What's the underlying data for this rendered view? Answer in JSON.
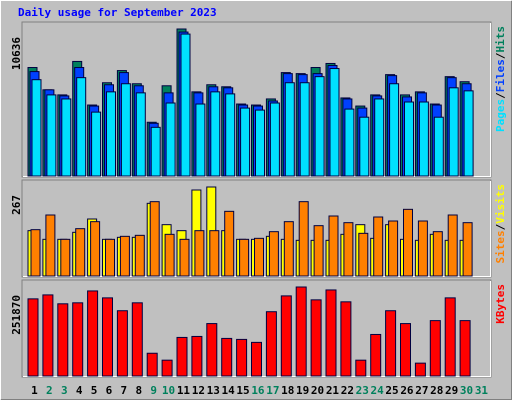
{
  "title": "Daily usage for September 2023",
  "legend_separator": "/",
  "chart_data": [
    {
      "type": "bar",
      "ylim": [
        0,
        10636
      ],
      "yticks": [
        10636
      ],
      "series": [
        {
          "name": "Hits",
          "color": "#00805c",
          "values": [
            7849,
            6235,
            5868,
            8289,
            5135,
            6748,
            7628,
            6675,
            3888,
            6528,
            10636,
            6088,
            6602,
            6455,
            5208,
            5135,
            5575,
            7482,
            7408,
            7849,
            8142,
            5648,
            5061,
            5868,
            7335,
            5868,
            6088,
            5208,
            7188,
            6822,
            null
          ]
        },
        {
          "name": "Files",
          "color": "#0040ff",
          "values": [
            7555,
            6235,
            5795,
            7849,
            5061,
            6602,
            7482,
            6528,
            3814,
            6015,
            10416,
            6015,
            6455,
            6381,
            5135,
            5061,
            5428,
            7408,
            7335,
            7408,
            7995,
            5575,
            4914,
            5795,
            7262,
            5721,
            6015,
            5135,
            7115,
            6675,
            null
          ]
        },
        {
          "name": "Pages",
          "color": "#00e0ff",
          "values": [
            6968,
            5868,
            5575,
            7115,
            4621,
            6088,
            6675,
            6015,
            3521,
            5281,
            10269,
            5208,
            6088,
            5941,
            4914,
            4768,
            5281,
            6748,
            6748,
            7188,
            7775,
            4841,
            4254,
            5575,
            6675,
            5354,
            5354,
            4254,
            6381,
            6161,
            null
          ]
        }
      ]
    },
    {
      "type": "bar",
      "ylim": [
        0,
        267
      ],
      "yticks": [
        267
      ],
      "series": [
        {
          "name": "Visits",
          "color": "#ffff00",
          "values": [
            136,
            110,
            110,
            131,
            171,
            110,
            116,
            116,
            218,
            154,
            136,
            258,
            267,
            136,
            110,
            110,
            119,
            110,
            107,
            107,
            107,
            125,
            154,
            113,
            154,
            110,
            107,
            125,
            107,
            107,
            null
          ]
        },
        {
          "name": "Sites",
          "color": "#ff8000",
          "values": [
            139,
            183,
            110,
            142,
            163,
            110,
            119,
            122,
            223,
            125,
            110,
            136,
            136,
            194,
            110,
            113,
            133,
            163,
            223,
            151,
            180,
            160,
            128,
            177,
            165,
            200,
            165,
            133,
            183,
            160,
            null
          ]
        }
      ]
    },
    {
      "type": "bar",
      "ylim": [
        0,
        251870
      ],
      "yticks": [
        251870
      ],
      "categories": [
        "1",
        "2",
        "3",
        "4",
        "5",
        "6",
        "7",
        "8",
        "9",
        "10",
        "11",
        "12",
        "13",
        "14",
        "15",
        "16",
        "17",
        "18",
        "19",
        "20",
        "21",
        "22",
        "23",
        "24",
        "25",
        "26",
        "27",
        "28",
        "29",
        "30",
        "31"
      ],
      "category_colors": [
        "#000000",
        "#00805c",
        "#00805c",
        "#000000",
        "#000000",
        "#000000",
        "#000000",
        "#000000",
        "#00805c",
        "#00805c",
        "#000000",
        "#000000",
        "#000000",
        "#000000",
        "#000000",
        "#00805c",
        "#00805c",
        "#000000",
        "#000000",
        "#000000",
        "#000000",
        "#000000",
        "#00805c",
        "#00805c",
        "#000000",
        "#000000",
        "#000000",
        "#000000",
        "#000000",
        "#00805c",
        "#00805c"
      ],
      "series": [
        {
          "name": "KBytes",
          "color": "#ff0000",
          "values": [
            218322,
            229518,
            204327,
            207126,
            240714,
            221121,
            184734,
            207126,
            64377,
            44784,
            109161,
            111960,
            148347,
            106362,
            103563,
            95166,
            181935,
            226719,
            251870,
            215523,
            243513,
            209925,
            44784,
            117558,
            184734,
            148347,
            36387,
            156744,
            221121,
            156744,
            null
          ]
        }
      ]
    }
  ]
}
